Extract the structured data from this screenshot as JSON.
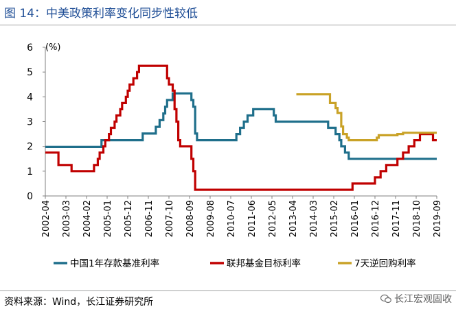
{
  "figure": {
    "title": "图 14：中美政策利率变化同步性较低",
    "source": "资料来源：Wind，长江证券研究所",
    "watermark": "长江宏观固收",
    "watermark_icon": "wechat-icon"
  },
  "chart_data": {
    "type": "line",
    "title": "",
    "xlabel": "",
    "ylabel": "(%)",
    "ylim": [
      0,
      6
    ],
    "yticks": [
      0,
      1,
      2,
      3,
      4,
      5,
      6
    ],
    "xrange": [
      "2002-04",
      "2019-09"
    ],
    "xticks": [
      "2002-04",
      "2003-03",
      "2004-02",
      "2005-01",
      "2005-12",
      "2006-11",
      "2007-10",
      "2008-09",
      "2009-08",
      "2010-07",
      "2011-06",
      "2012-05",
      "2013-04",
      "2014-03",
      "2015-02",
      "2016-01",
      "2016-12",
      "2017-11",
      "2018-10",
      "2019-09"
    ],
    "grid": false,
    "legend_position": "bottom",
    "series": [
      {
        "name": "中国1年存款基准利率",
        "color": "#1f6f8b",
        "points": [
          [
            "2002-04",
            1.98
          ],
          [
            "2004-10",
            1.98
          ],
          [
            "2004-10",
            2.25
          ],
          [
            "2006-08",
            2.25
          ],
          [
            "2006-08",
            2.52
          ],
          [
            "2007-03",
            2.52
          ],
          [
            "2007-03",
            2.79
          ],
          [
            "2007-05",
            2.79
          ],
          [
            "2007-05",
            3.06
          ],
          [
            "2007-07",
            3.06
          ],
          [
            "2007-07",
            3.33
          ],
          [
            "2007-08",
            3.33
          ],
          [
            "2007-08",
            3.6
          ],
          [
            "2007-09",
            3.6
          ],
          [
            "2007-09",
            3.87
          ],
          [
            "2007-12",
            3.87
          ],
          [
            "2007-12",
            4.14
          ],
          [
            "2008-10",
            4.14
          ],
          [
            "2008-10",
            3.87
          ],
          [
            "2008-11",
            3.87
          ],
          [
            "2008-11",
            3.6
          ],
          [
            "2008-12",
            3.6
          ],
          [
            "2008-12",
            2.52
          ],
          [
            "2009-01",
            2.52
          ],
          [
            "2009-01",
            2.25
          ],
          [
            "2010-10",
            2.25
          ],
          [
            "2010-10",
            2.5
          ],
          [
            "2010-12",
            2.5
          ],
          [
            "2010-12",
            2.75
          ],
          [
            "2011-02",
            2.75
          ],
          [
            "2011-02",
            3.0
          ],
          [
            "2011-04",
            3.0
          ],
          [
            "2011-04",
            3.25
          ],
          [
            "2011-07",
            3.25
          ],
          [
            "2011-07",
            3.5
          ],
          [
            "2012-06",
            3.5
          ],
          [
            "2012-06",
            3.25
          ],
          [
            "2012-07",
            3.25
          ],
          [
            "2012-07",
            3.0
          ],
          [
            "2014-11",
            3.0
          ],
          [
            "2014-11",
            2.75
          ],
          [
            "2015-03",
            2.75
          ],
          [
            "2015-03",
            2.5
          ],
          [
            "2015-05",
            2.5
          ],
          [
            "2015-05",
            2.25
          ],
          [
            "2015-06",
            2.25
          ],
          [
            "2015-06",
            2.0
          ],
          [
            "2015-08",
            2.0
          ],
          [
            "2015-08",
            1.75
          ],
          [
            "2015-10",
            1.75
          ],
          [
            "2015-10",
            1.5
          ],
          [
            "2019-09",
            1.5
          ]
        ]
      },
      {
        "name": "联邦基金目标利率",
        "color": "#c00000",
        "points": [
          [
            "2002-04",
            1.75
          ],
          [
            "2002-11",
            1.75
          ],
          [
            "2002-11",
            1.25
          ],
          [
            "2003-06",
            1.25
          ],
          [
            "2003-06",
            1.0
          ],
          [
            "2004-06",
            1.0
          ],
          [
            "2004-06",
            1.25
          ],
          [
            "2004-08",
            1.25
          ],
          [
            "2004-08",
            1.5
          ],
          [
            "2004-09",
            1.5
          ],
          [
            "2004-09",
            1.75
          ],
          [
            "2004-11",
            1.75
          ],
          [
            "2004-11",
            2.0
          ],
          [
            "2004-12",
            2.0
          ],
          [
            "2004-12",
            2.25
          ],
          [
            "2005-02",
            2.25
          ],
          [
            "2005-02",
            2.5
          ],
          [
            "2005-03",
            2.5
          ],
          [
            "2005-03",
            2.75
          ],
          [
            "2005-05",
            2.75
          ],
          [
            "2005-05",
            3.0
          ],
          [
            "2005-06",
            3.0
          ],
          [
            "2005-06",
            3.25
          ],
          [
            "2005-08",
            3.25
          ],
          [
            "2005-08",
            3.5
          ],
          [
            "2005-09",
            3.5
          ],
          [
            "2005-09",
            3.75
          ],
          [
            "2005-11",
            3.75
          ],
          [
            "2005-11",
            4.0
          ],
          [
            "2005-12",
            4.0
          ],
          [
            "2005-12",
            4.25
          ],
          [
            "2006-01",
            4.25
          ],
          [
            "2006-01",
            4.5
          ],
          [
            "2006-03",
            4.5
          ],
          [
            "2006-03",
            4.75
          ],
          [
            "2006-05",
            4.75
          ],
          [
            "2006-05",
            5.0
          ],
          [
            "2006-06",
            5.0
          ],
          [
            "2006-06",
            5.25
          ],
          [
            "2007-09",
            5.25
          ],
          [
            "2007-09",
            4.75
          ],
          [
            "2007-10",
            4.75
          ],
          [
            "2007-10",
            4.5
          ],
          [
            "2007-12",
            4.5
          ],
          [
            "2007-12",
            4.25
          ],
          [
            "2008-01",
            4.25
          ],
          [
            "2008-01",
            3.5
          ],
          [
            "2008-02",
            3.5
          ],
          [
            "2008-02",
            3.0
          ],
          [
            "2008-03",
            3.0
          ],
          [
            "2008-03",
            2.25
          ],
          [
            "2008-04",
            2.25
          ],
          [
            "2008-04",
            2.0
          ],
          [
            "2008-10",
            2.0
          ],
          [
            "2008-10",
            1.5
          ],
          [
            "2008-11",
            1.5
          ],
          [
            "2008-11",
            1.0
          ],
          [
            "2008-12",
            1.0
          ],
          [
            "2008-12",
            0.25
          ],
          [
            "2015-12",
            0.25
          ],
          [
            "2015-12",
            0.5
          ],
          [
            "2016-12",
            0.5
          ],
          [
            "2016-12",
            0.75
          ],
          [
            "2017-03",
            0.75
          ],
          [
            "2017-03",
            1.0
          ],
          [
            "2017-06",
            1.0
          ],
          [
            "2017-06",
            1.25
          ],
          [
            "2017-12",
            1.25
          ],
          [
            "2017-12",
            1.5
          ],
          [
            "2018-03",
            1.5
          ],
          [
            "2018-03",
            1.75
          ],
          [
            "2018-06",
            1.75
          ],
          [
            "2018-06",
            2.0
          ],
          [
            "2018-09",
            2.0
          ],
          [
            "2018-09",
            2.25
          ],
          [
            "2018-12",
            2.25
          ],
          [
            "2018-12",
            2.5
          ],
          [
            "2019-07",
            2.5
          ],
          [
            "2019-07",
            2.25
          ],
          [
            "2019-09",
            2.25
          ]
        ]
      },
      {
        "name": "7天逆回购利率",
        "color": "#c9a227",
        "points": [
          [
            "2013-06",
            4.1
          ],
          [
            "2014-12",
            4.1
          ],
          [
            "2014-12",
            3.75
          ],
          [
            "2015-03",
            3.75
          ],
          [
            "2015-03",
            3.55
          ],
          [
            "2015-04",
            3.55
          ],
          [
            "2015-04",
            3.35
          ],
          [
            "2015-06",
            3.35
          ],
          [
            "2015-06",
            2.8
          ],
          [
            "2015-07",
            2.8
          ],
          [
            "2015-07",
            2.5
          ],
          [
            "2015-09",
            2.5
          ],
          [
            "2015-09",
            2.35
          ],
          [
            "2015-10",
            2.35
          ],
          [
            "2015-10",
            2.25
          ],
          [
            "2017-01",
            2.25
          ],
          [
            "2017-01",
            2.35
          ],
          [
            "2017-02",
            2.35
          ],
          [
            "2017-02",
            2.45
          ],
          [
            "2017-12",
            2.45
          ],
          [
            "2017-12",
            2.5
          ],
          [
            "2018-03",
            2.5
          ],
          [
            "2018-03",
            2.55
          ],
          [
            "2019-09",
            2.55
          ]
        ]
      }
    ]
  }
}
